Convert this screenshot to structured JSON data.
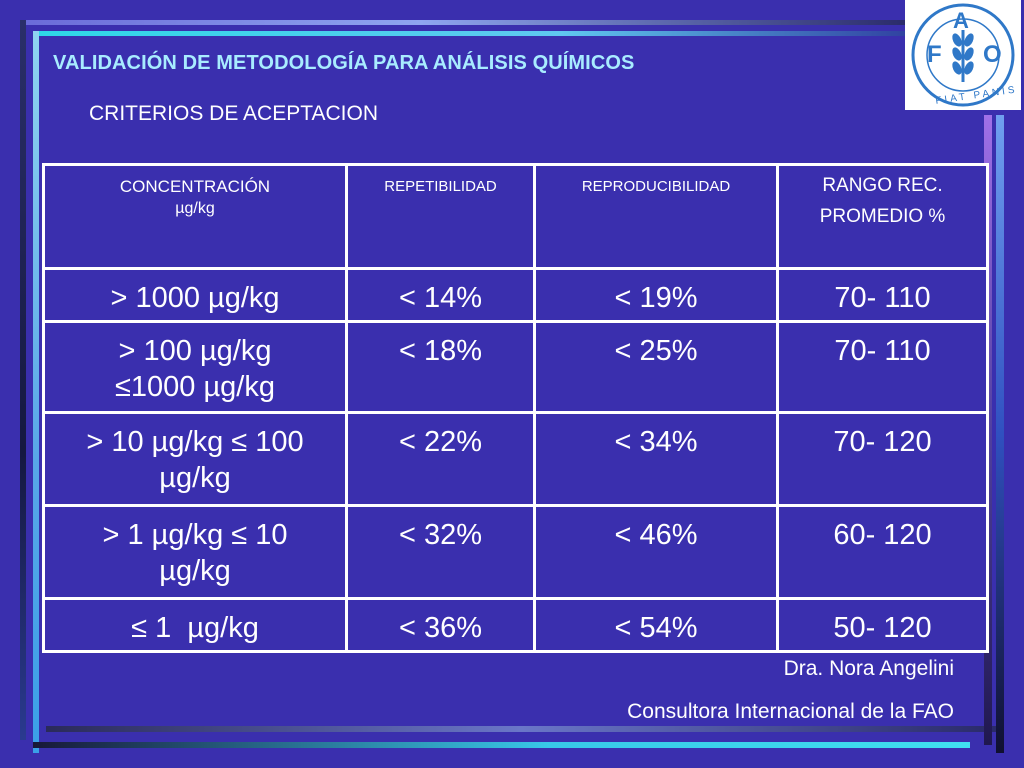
{
  "header": {
    "title": "VALIDACIÓN DE METODOLOGÍA PARA ANÁLISIS QUÍMICOS",
    "subtitle": "CRITERIOS DE ACEPTACION"
  },
  "logo": {
    "letters": [
      "F",
      "A",
      "O"
    ],
    "motto": "FIAT PANIS",
    "icon": "fao-emblem-icon"
  },
  "table": {
    "headers": {
      "concentration_line1": "CONCENTRACIÓN",
      "concentration_line2": "µg/kg",
      "repeatability": "REPETIBILIDAD",
      "reproducibility": "REPRODUCIBILIDAD",
      "recovery_line1": "RANGO REC.",
      "recovery_line2": "PROMEDIO %"
    },
    "rows": [
      {
        "concentration_line1": "> 1000 µg/kg",
        "concentration_line2": "",
        "repeatability": "< 14%",
        "reproducibility": "< 19%",
        "recovery": "70- 110"
      },
      {
        "concentration_line1": "> 100 µg/kg",
        "concentration_line2": "≤1000 µg/kg",
        "repeatability": "< 18%",
        "reproducibility": "< 25%",
        "recovery": "70- 110"
      },
      {
        "concentration_line1": "> 10 µg/kg ≤ 100",
        "concentration_line2": "µg/kg",
        "repeatability": "< 22%",
        "reproducibility": "< 34%",
        "recovery": "70- 120"
      },
      {
        "concentration_line1": "> 1 µg/kg ≤ 10",
        "concentration_line2": "µg/kg",
        "repeatability": "< 32%",
        "reproducibility": "< 46%",
        "recovery": "60- 120"
      },
      {
        "concentration_line1": "≤ 1  µg/kg",
        "concentration_line2": "",
        "repeatability": "< 36%",
        "reproducibility": "< 54%",
        "recovery": "50- 120"
      }
    ]
  },
  "footer": {
    "author": "Dra. Nora Angelini",
    "role": "Consultora Internacional de la FAO"
  },
  "colors": {
    "background": "#3a2fae",
    "title": "#a8ecff",
    "grid": "#ffffff",
    "logo_blue": "#2f78c8"
  }
}
